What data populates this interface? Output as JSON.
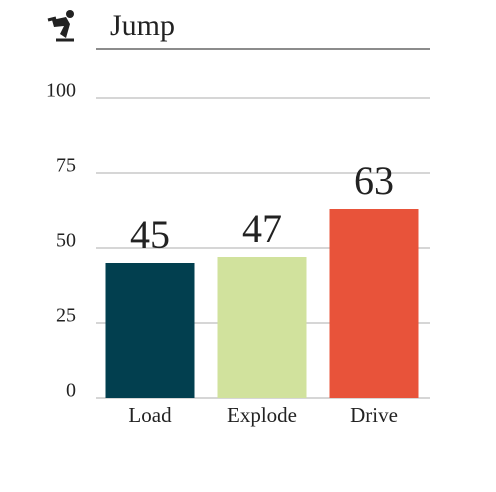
{
  "chart_data": {
    "type": "bar",
    "title": "Jump",
    "categories": [
      "Load",
      "Explode",
      "Drive"
    ],
    "values": [
      45,
      47,
      63
    ],
    "colors": [
      "#023f4f",
      "#d1e29d",
      "#e8533a"
    ],
    "ylim": [
      0,
      100
    ],
    "yticks": [
      0,
      25,
      50,
      75,
      100
    ],
    "grid": true
  }
}
